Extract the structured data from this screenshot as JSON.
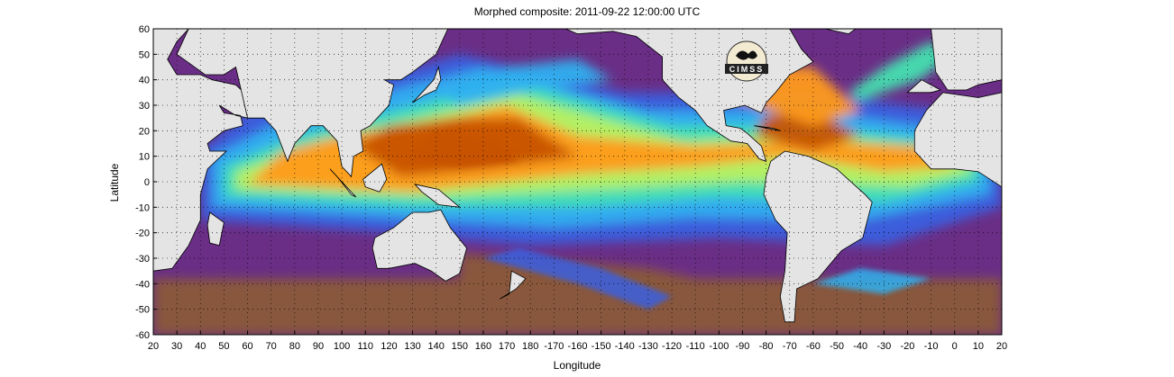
{
  "title": "Morphed composite: 2011-09-22 12:00:00 UTC",
  "xlabel": "Longitude",
  "ylabel": "Latitude",
  "logo_text": "CIMSS",
  "colors": {
    "land": "#e4e4e4",
    "coast": "#000000",
    "grid": "#000000",
    "very_dry": "#8a5a3a",
    "dry": "#6a2e86",
    "low": "#3a5fe0",
    "mid_low": "#2fb0f0",
    "mid": "#45e0b0",
    "mid_high": "#b8f060",
    "high": "#ff9a1a",
    "very_high": "#c75200"
  },
  "chart_data": {
    "type": "heatmap",
    "title": "Morphed composite: 2011-09-22 12:00:00 UTC",
    "xlabel": "Longitude",
    "ylabel": "Latitude",
    "xlim_deg_east": [
      20,
      380
    ],
    "ylim": [
      -60,
      60
    ],
    "grid": true,
    "x_ticks": [
      "20",
      "30",
      "40",
      "50",
      "60",
      "70",
      "80",
      "90",
      "100",
      "110",
      "120",
      "130",
      "140",
      "150",
      "160",
      "170",
      "180",
      "-170",
      "-160",
      "-150",
      "-140",
      "-130",
      "-120",
      "-110",
      "-100",
      "-90",
      "-80",
      "-70",
      "-60",
      "-50",
      "-40",
      "-30",
      "-20",
      "-10",
      "0",
      "10",
      "20"
    ],
    "y_ticks": [
      "60",
      "50",
      "40",
      "30",
      "20",
      "10",
      "0",
      "-10",
      "-20",
      "-30",
      "-40",
      "-50",
      "-60"
    ]
  }
}
